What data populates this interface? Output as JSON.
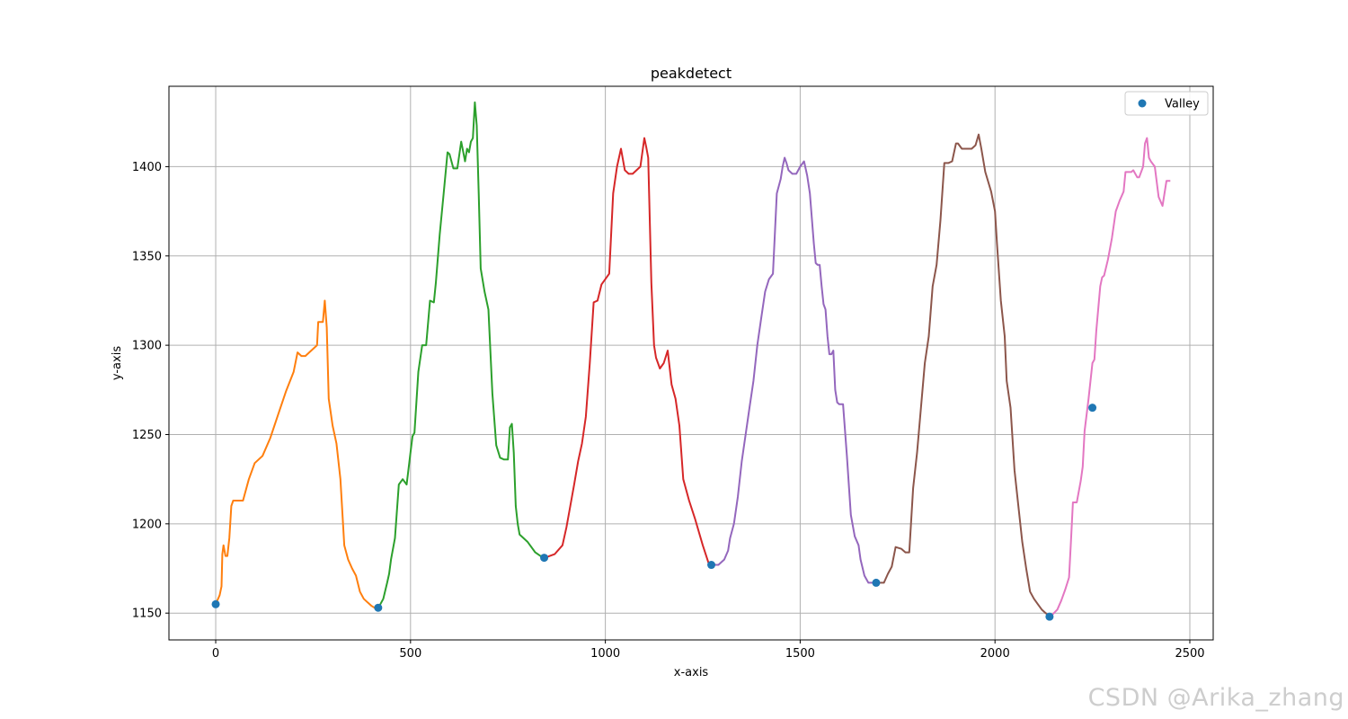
{
  "watermark": "CSDN @Arika_zhang",
  "chart_data": {
    "type": "line",
    "title": "peakdetect",
    "xlabel": "x-axis",
    "ylabel": "y-axis",
    "xlim": [
      -120,
      2560
    ],
    "ylim": [
      1135,
      1445
    ],
    "xticks": [
      0,
      500,
      1000,
      1500,
      2000,
      2500
    ],
    "yticks": [
      1150,
      1200,
      1250,
      1300,
      1350,
      1400
    ],
    "grid": true,
    "legend": {
      "entries": [
        "Valley"
      ],
      "placement": "top-right"
    },
    "colors": [
      "#ff7f0e",
      "#2ca02c",
      "#d62728",
      "#9467bd",
      "#8c564b",
      "#e377c2"
    ],
    "valley_color": "#1f77b4",
    "series": [
      {
        "x": [
          0,
          10,
          15,
          17,
          20,
          25,
          30,
          35,
          40,
          45,
          55,
          70,
          85,
          100,
          120,
          140,
          160,
          180,
          200,
          210,
          220,
          230,
          260,
          263,
          275,
          280,
          285,
          290,
          300,
          310,
          320,
          330,
          340,
          350,
          360,
          370,
          380,
          390,
          400,
          415
        ],
        "y": [
          1155,
          1160,
          1165,
          1183,
          1188,
          1182,
          1182,
          1192,
          1210,
          1213,
          1213,
          1213,
          1225,
          1234,
          1238,
          1248,
          1261,
          1274,
          1285,
          1296,
          1294,
          1294,
          1300,
          1313,
          1313,
          1325,
          1310,
          1270,
          1255,
          1245,
          1225,
          1188,
          1180,
          1175,
          1171,
          1162,
          1158,
          1156,
          1154,
          1152
        ]
      },
      {
        "x": [
          415,
          430,
          440,
          445,
          450,
          460,
          470,
          480,
          490,
          500,
          505,
          510,
          520,
          530,
          540,
          550,
          560,
          565,
          575,
          585,
          595,
          600,
          610,
          620,
          630,
          640,
          645,
          650,
          655,
          660,
          665,
          670,
          675,
          680,
          690,
          700,
          710,
          720,
          730,
          740,
          750,
          755,
          760,
          765,
          770,
          775,
          780,
          800,
          820,
          840
        ],
        "y": [
          1152,
          1158,
          1167,
          1172,
          1180,
          1192,
          1222,
          1225,
          1222,
          1240,
          1249,
          1251,
          1285,
          1300,
          1300,
          1325,
          1324,
          1335,
          1362,
          1385,
          1408,
          1407,
          1399,
          1399,
          1414,
          1403,
          1410,
          1408,
          1414,
          1416,
          1436,
          1423,
          1385,
          1343,
          1330,
          1320,
          1273,
          1244,
          1237,
          1236,
          1236,
          1254,
          1256,
          1240,
          1210,
          1200,
          1194,
          1190,
          1184,
          1181
        ]
      },
      {
        "x": [
          845,
          870,
          890,
          900,
          910,
          920,
          930,
          940,
          950,
          960,
          970,
          980,
          990,
          1000,
          1010,
          1020,
          1030,
          1040,
          1050,
          1060,
          1070,
          1080,
          1090,
          1100,
          1105,
          1110,
          1118,
          1125,
          1130,
          1140,
          1150,
          1160,
          1170,
          1180,
          1190,
          1200,
          1215,
          1230,
          1250,
          1265,
          1272
        ],
        "y": [
          1181,
          1183,
          1188,
          1198,
          1210,
          1222,
          1235,
          1245,
          1260,
          1290,
          1324,
          1325,
          1334,
          1337,
          1340,
          1385,
          1400,
          1410,
          1398,
          1396,
          1396,
          1398,
          1400,
          1416,
          1411,
          1405,
          1335,
          1300,
          1293,
          1287,
          1290,
          1297,
          1278,
          1270,
          1255,
          1225,
          1213,
          1203,
          1188,
          1178,
          1177
        ]
      },
      {
        "x": [
          1272,
          1290,
          1305,
          1315,
          1320,
          1330,
          1340,
          1350,
          1360,
          1370,
          1380,
          1390,
          1400,
          1410,
          1420,
          1430,
          1440,
          1450,
          1455,
          1460,
          1465,
          1470,
          1480,
          1490,
          1500,
          1510,
          1518,
          1525,
          1535,
          1540,
          1545,
          1550,
          1555,
          1560,
          1565,
          1570,
          1575,
          1580,
          1585,
          1590,
          1595,
          1600,
          1610,
          1620,
          1630,
          1640,
          1650,
          1655,
          1665,
          1675,
          1680,
          1690
        ],
        "y": [
          1177,
          1177,
          1180,
          1185,
          1192,
          1200,
          1215,
          1235,
          1250,
          1265,
          1280,
          1300,
          1315,
          1330,
          1337,
          1340,
          1385,
          1393,
          1400,
          1405,
          1402,
          1398,
          1396,
          1396,
          1400,
          1403,
          1395,
          1385,
          1357,
          1346,
          1345,
          1345,
          1333,
          1323,
          1320,
          1305,
          1295,
          1295,
          1297,
          1275,
          1268,
          1267,
          1267,
          1238,
          1205,
          1193,
          1188,
          1180,
          1171,
          1167,
          1167,
          1167
        ]
      },
      {
        "x": [
          1690,
          1705,
          1715,
          1725,
          1735,
          1745,
          1760,
          1770,
          1780,
          1790,
          1800,
          1810,
          1820,
          1830,
          1840,
          1850,
          1860,
          1870,
          1880,
          1890,
          1900,
          1905,
          1915,
          1930,
          1940,
          1950,
          1958,
          1965,
          1975,
          1990,
          2000,
          2005,
          2015,
          2025,
          2030,
          2040,
          2050,
          2060,
          2070,
          2080,
          2090,
          2100,
          2110,
          2120,
          2130,
          2142
        ],
        "y": [
          1167,
          1167,
          1167,
          1172,
          1176,
          1187,
          1186,
          1184,
          1184,
          1220,
          1240,
          1265,
          1290,
          1305,
          1333,
          1345,
          1370,
          1402,
          1402,
          1403,
          1413,
          1413,
          1410,
          1410,
          1410,
          1412,
          1418,
          1410,
          1397,
          1386,
          1375,
          1357,
          1325,
          1305,
          1280,
          1265,
          1230,
          1210,
          1190,
          1175,
          1162,
          1158,
          1155,
          1152,
          1150,
          1148
        ]
      },
      {
        "x": [
          2142,
          2160,
          2170,
          2180,
          2190,
          2195,
          2200,
          2210,
          2220,
          2225,
          2230,
          2240,
          2250,
          2255,
          2260,
          2270,
          2275,
          2280,
          2290,
          2300,
          2310,
          2320,
          2330,
          2335,
          2340,
          2350,
          2355,
          2360,
          2365,
          2370,
          2380,
          2385,
          2390,
          2395,
          2400,
          2410,
          2420,
          2430,
          2440,
          2445,
          2450
        ],
        "y": [
          1148,
          1152,
          1157,
          1163,
          1170,
          1190,
          1212,
          1212,
          1224,
          1232,
          1252,
          1270,
          1290,
          1292,
          1308,
          1333,
          1338,
          1339,
          1348,
          1360,
          1375,
          1381,
          1386,
          1397,
          1397,
          1397,
          1398,
          1396,
          1394,
          1394,
          1400,
          1413,
          1416,
          1405,
          1403,
          1400,
          1383,
          1378,
          1392,
          1392,
          1392
        ]
      }
    ],
    "valleys": {
      "name": "Valley",
      "x": [
        0,
        417,
        843,
        1272,
        1695,
        2140,
        2250
      ],
      "y": [
        1155,
        1153,
        1181,
        1177,
        1167,
        1148,
        1265
      ]
    }
  }
}
